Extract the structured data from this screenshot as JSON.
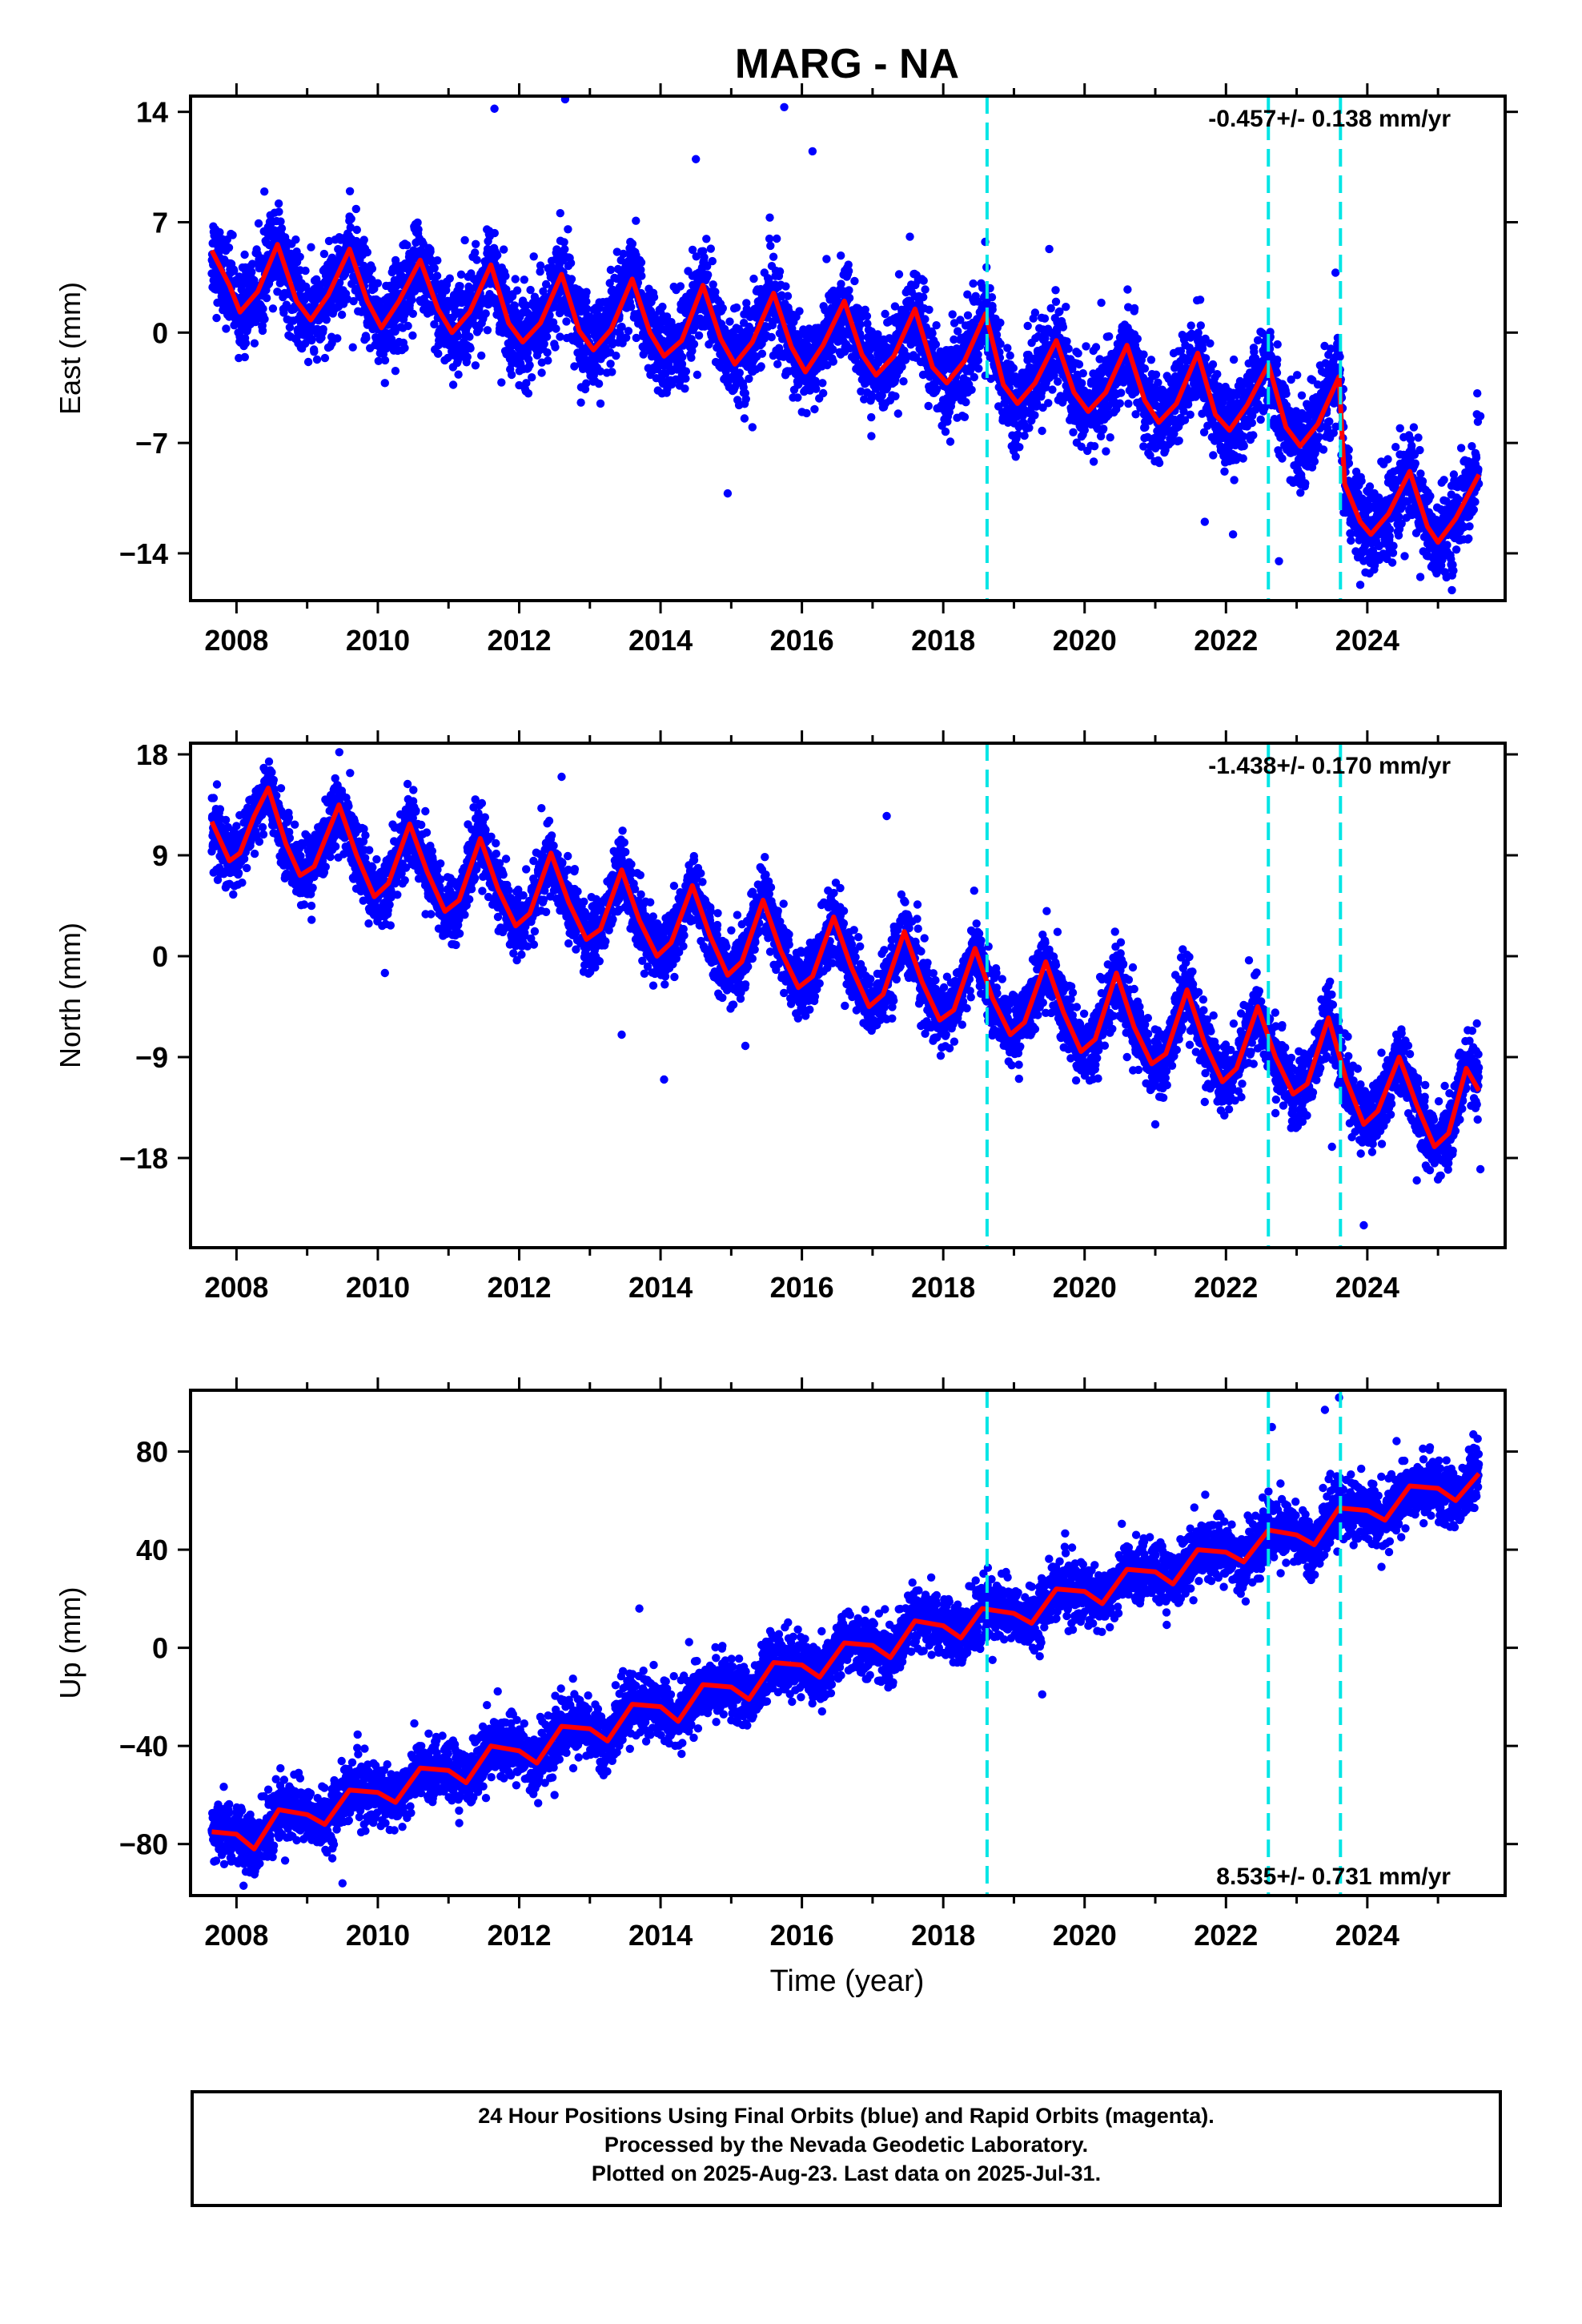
{
  "chart_data": {
    "type": "scatter",
    "title": "MARG - NA",
    "xlabel": "Time (year)",
    "xlim": [
      2007.35,
      2025.95
    ],
    "x_ticks": [
      2008,
      2010,
      2012,
      2014,
      2016,
      2018,
      2020,
      2022,
      2024
    ],
    "x_tick_labels": [
      "2008",
      "2010",
      "2012",
      "2014",
      "2016",
      "2018",
      "2020",
      "2022",
      "2024"
    ],
    "data_start": 2007.65,
    "data_end": 2025.58,
    "event_lines": [
      2018.62,
      2022.6,
      2023.62
    ],
    "colors": {
      "final_orbits": "#0000ff",
      "model": "#ff0000",
      "event_line": "#00e5e5",
      "axes": "#000000"
    },
    "panels": [
      {
        "ylabel": "East (mm)",
        "ylim": [
          -17,
          15
        ],
        "y_ticks": [
          14,
          7,
          0,
          -7,
          -14
        ],
        "y_tick_labels": [
          "14",
          "7",
          "0",
          "−7",
          "−14"
        ],
        "rate": "-0.457+/- 0.138 mm/yr",
        "rate_position": "top-right",
        "model_points": [
          [
            2007.65,
            5.2
          ],
          [
            2007.9,
            3.0
          ],
          [
            2008.05,
            1.3
          ],
          [
            2008.3,
            2.6
          ],
          [
            2008.58,
            5.6
          ],
          [
            2008.85,
            2.0
          ],
          [
            2009.05,
            0.8
          ],
          [
            2009.3,
            2.4
          ],
          [
            2009.6,
            5.3
          ],
          [
            2009.85,
            2.0
          ],
          [
            2010.05,
            0.3
          ],
          [
            2010.3,
            2.0
          ],
          [
            2010.6,
            4.6
          ],
          [
            2010.85,
            1.5
          ],
          [
            2011.05,
            0.0
          ],
          [
            2011.3,
            1.3
          ],
          [
            2011.6,
            4.3
          ],
          [
            2011.85,
            0.6
          ],
          [
            2012.05,
            -0.6
          ],
          [
            2012.3,
            0.6
          ],
          [
            2012.6,
            3.7
          ],
          [
            2012.85,
            0.1
          ],
          [
            2013.05,
            -1.1
          ],
          [
            2013.3,
            0.2
          ],
          [
            2013.6,
            3.4
          ],
          [
            2013.85,
            0.0
          ],
          [
            2014.05,
            -1.5
          ],
          [
            2014.3,
            -0.5
          ],
          [
            2014.6,
            3.0
          ],
          [
            2014.85,
            -0.4
          ],
          [
            2015.05,
            -2.0
          ],
          [
            2015.3,
            -0.6
          ],
          [
            2015.6,
            2.5
          ],
          [
            2015.85,
            -0.9
          ],
          [
            2016.05,
            -2.5
          ],
          [
            2016.3,
            -0.8
          ],
          [
            2016.6,
            2.0
          ],
          [
            2016.85,
            -1.4
          ],
          [
            2017.05,
            -2.7
          ],
          [
            2017.3,
            -1.5
          ],
          [
            2017.6,
            1.5
          ],
          [
            2017.85,
            -2.2
          ],
          [
            2018.05,
            -3.2
          ],
          [
            2018.3,
            -1.8
          ],
          [
            2018.6,
            1.2
          ],
          [
            2018.85,
            -3.3
          ],
          [
            2019.05,
            -4.5
          ],
          [
            2019.3,
            -3.2
          ],
          [
            2019.6,
            -0.5
          ],
          [
            2019.85,
            -3.8
          ],
          [
            2020.05,
            -5.0
          ],
          [
            2020.3,
            -3.8
          ],
          [
            2020.6,
            -0.8
          ],
          [
            2020.85,
            -4.3
          ],
          [
            2021.05,
            -5.7
          ],
          [
            2021.3,
            -4.5
          ],
          [
            2021.6,
            -1.3
          ],
          [
            2021.85,
            -5.2
          ],
          [
            2022.05,
            -6.2
          ],
          [
            2022.3,
            -4.6
          ],
          [
            2022.6,
            -2.0
          ],
          [
            2022.85,
            -6.0
          ],
          [
            2023.05,
            -7.2
          ],
          [
            2023.3,
            -5.8
          ],
          [
            2023.6,
            -2.8
          ],
          [
            2023.68,
            -9.6
          ],
          [
            2023.9,
            -12.0
          ],
          [
            2024.05,
            -12.8
          ],
          [
            2024.3,
            -11.5
          ],
          [
            2024.6,
            -8.8
          ],
          [
            2024.85,
            -12.3
          ],
          [
            2025.0,
            -13.3
          ],
          [
            2025.25,
            -11.8
          ],
          [
            2025.58,
            -9.0
          ]
        ]
      },
      {
        "ylabel": "North (mm)",
        "ylim": [
          -26,
          19
        ],
        "y_ticks": [
          18,
          9,
          0,
          -9,
          -18
        ],
        "y_tick_labels": [
          "18",
          "9",
          "0",
          "−9",
          "−18"
        ],
        "rate": "-1.438+/- 0.170 mm/yr",
        "rate_position": "top-right",
        "model_points": [
          [
            2007.65,
            12.0
          ],
          [
            2007.9,
            8.5
          ],
          [
            2008.05,
            9.2
          ],
          [
            2008.25,
            12.5
          ],
          [
            2008.45,
            15.0
          ],
          [
            2008.7,
            10.0
          ],
          [
            2008.9,
            7.2
          ],
          [
            2009.1,
            8.0
          ],
          [
            2009.45,
            13.5
          ],
          [
            2009.7,
            9.0
          ],
          [
            2009.95,
            5.3
          ],
          [
            2010.15,
            6.5
          ],
          [
            2010.45,
            11.8
          ],
          [
            2010.7,
            7.5
          ],
          [
            2010.95,
            4.0
          ],
          [
            2011.15,
            5.0
          ],
          [
            2011.45,
            10.5
          ],
          [
            2011.7,
            6.0
          ],
          [
            2011.95,
            2.7
          ],
          [
            2012.15,
            3.8
          ],
          [
            2012.45,
            9.2
          ],
          [
            2012.7,
            4.8
          ],
          [
            2012.95,
            1.5
          ],
          [
            2013.15,
            2.4
          ],
          [
            2013.45,
            7.7
          ],
          [
            2013.7,
            3.2
          ],
          [
            2013.95,
            0.0
          ],
          [
            2014.15,
            1.2
          ],
          [
            2014.45,
            6.3
          ],
          [
            2014.7,
            1.8
          ],
          [
            2014.95,
            -1.7
          ],
          [
            2015.15,
            -0.5
          ],
          [
            2015.45,
            5.0
          ],
          [
            2015.7,
            0.5
          ],
          [
            2015.95,
            -2.8
          ],
          [
            2016.15,
            -1.8
          ],
          [
            2016.45,
            3.5
          ],
          [
            2016.7,
            -1.0
          ],
          [
            2016.95,
            -4.5
          ],
          [
            2017.15,
            -3.4
          ],
          [
            2017.45,
            2.2
          ],
          [
            2017.7,
            -2.3
          ],
          [
            2017.95,
            -5.7
          ],
          [
            2018.15,
            -4.8
          ],
          [
            2018.45,
            0.7
          ],
          [
            2018.7,
            -3.8
          ],
          [
            2018.95,
            -7.0
          ],
          [
            2019.15,
            -5.9
          ],
          [
            2019.45,
            -0.5
          ],
          [
            2019.7,
            -5.0
          ],
          [
            2019.95,
            -8.5
          ],
          [
            2020.15,
            -7.4
          ],
          [
            2020.45,
            -1.5
          ],
          [
            2020.7,
            -6.3
          ],
          [
            2020.95,
            -9.6
          ],
          [
            2021.15,
            -8.7
          ],
          [
            2021.45,
            -3.0
          ],
          [
            2021.7,
            -7.8
          ],
          [
            2021.95,
            -11.2
          ],
          [
            2022.15,
            -10.0
          ],
          [
            2022.45,
            -4.5
          ],
          [
            2022.7,
            -9.0
          ],
          [
            2022.95,
            -12.3
          ],
          [
            2023.15,
            -11.4
          ],
          [
            2023.45,
            -5.5
          ],
          [
            2023.7,
            -11.0
          ],
          [
            2023.95,
            -15.0
          ],
          [
            2024.15,
            -13.8
          ],
          [
            2024.45,
            -9.0
          ],
          [
            2024.7,
            -13.3
          ],
          [
            2024.95,
            -17.0
          ],
          [
            2025.15,
            -15.8
          ],
          [
            2025.4,
            -10.0
          ],
          [
            2025.58,
            -12.0
          ]
        ]
      },
      {
        "ylabel": "Up (mm)",
        "ylim": [
          -101,
          105
        ],
        "y_ticks": [
          80,
          40,
          0,
          -40,
          -80
        ],
        "y_tick_labels": [
          "80",
          "40",
          "0",
          "−40",
          "−80"
        ],
        "rate": "8.535+/- 0.731 mm/yr",
        "rate_position": "bottom-right",
        "model_points": [
          [
            2007.65,
            -75
          ],
          [
            2008.0,
            -76
          ],
          [
            2008.25,
            -82
          ],
          [
            2008.6,
            -66
          ],
          [
            2009.0,
            -68
          ],
          [
            2009.25,
            -72
          ],
          [
            2009.6,
            -58
          ],
          [
            2010.0,
            -59
          ],
          [
            2010.25,
            -63
          ],
          [
            2010.6,
            -49
          ],
          [
            2011.0,
            -50
          ],
          [
            2011.25,
            -55
          ],
          [
            2011.6,
            -40
          ],
          [
            2012.0,
            -42
          ],
          [
            2012.25,
            -47
          ],
          [
            2012.6,
            -32
          ],
          [
            2013.0,
            -33
          ],
          [
            2013.25,
            -38
          ],
          [
            2013.6,
            -23
          ],
          [
            2014.0,
            -24
          ],
          [
            2014.25,
            -30
          ],
          [
            2014.6,
            -15
          ],
          [
            2015.0,
            -16
          ],
          [
            2015.25,
            -21
          ],
          [
            2015.6,
            -6
          ],
          [
            2016.0,
            -7
          ],
          [
            2016.25,
            -12
          ],
          [
            2016.6,
            2
          ],
          [
            2017.0,
            1
          ],
          [
            2017.25,
            -4
          ],
          [
            2017.6,
            11
          ],
          [
            2018.0,
            9
          ],
          [
            2018.25,
            4
          ],
          [
            2018.55,
            16
          ],
          [
            2019.0,
            14
          ],
          [
            2019.25,
            10
          ],
          [
            2019.6,
            24
          ],
          [
            2020.0,
            23
          ],
          [
            2020.25,
            18
          ],
          [
            2020.6,
            32
          ],
          [
            2021.0,
            31
          ],
          [
            2021.25,
            26
          ],
          [
            2021.6,
            40
          ],
          [
            2022.0,
            39
          ],
          [
            2022.25,
            35
          ],
          [
            2022.6,
            48
          ],
          [
            2023.0,
            46
          ],
          [
            2023.25,
            42
          ],
          [
            2023.6,
            57
          ],
          [
            2024.0,
            56
          ],
          [
            2024.25,
            52
          ],
          [
            2024.6,
            66
          ],
          [
            2025.0,
            65
          ],
          [
            2025.25,
            60
          ],
          [
            2025.58,
            71
          ]
        ]
      }
    ],
    "noise_mm": [
      1.4,
      1.5,
      6.0
    ],
    "outliers": [
      [
        [
          2011.65,
          14.2
        ],
        [
          2012.65,
          14.8
        ],
        [
          2015.75,
          14.3
        ],
        [
          2014.5,
          11.0
        ],
        [
          2016.15,
          11.5
        ],
        [
          2014.95,
          -10.2
        ],
        [
          2013.15,
          -4.5
        ],
        [
          2012.1,
          -3.2
        ],
        [
          2010.1,
          -3.2
        ],
        [
          2015.3,
          -6.0
        ],
        [
          2019.5,
          5.3
        ],
        [
          2023.55,
          3.8
        ],
        [
          2022.1,
          -12.8
        ],
        [
          2022.75,
          -14.5
        ],
        [
          2024.75,
          -15.5
        ],
        [
          2025.2,
          -15.0
        ],
        [
          2025.6,
          -5.3
        ],
        [
          2021.7,
          -12.0
        ],
        [
          2023.9,
          -16.0
        ]
      ],
      [
        [
          2012.6,
          16.0
        ],
        [
          2013.45,
          -7.0
        ],
        [
          2014.05,
          -11.0
        ],
        [
          2015.2,
          -8.0
        ],
        [
          2017.2,
          12.5
        ],
        [
          2019.3,
          -6.5
        ],
        [
          2020.6,
          -9.0
        ],
        [
          2021.7,
          -13.0
        ],
        [
          2023.5,
          -17.0
        ],
        [
          2023.95,
          -24.0
        ],
        [
          2024.7,
          -20.0
        ],
        [
          2025.6,
          -19.0
        ],
        [
          2025.55,
          -6.0
        ],
        [
          2022.7,
          -14.0
        ],
        [
          2021.0,
          -15.0
        ],
        [
          2010.1,
          -1.5
        ]
      ],
      [
        [
          2013.7,
          16
        ],
        [
          2022.65,
          90
        ],
        [
          2023.4,
          97
        ],
        [
          2023.6,
          102
        ],
        [
          2019.4,
          -19
        ],
        [
          2012.5,
          -60
        ],
        [
          2009.5,
          -96
        ],
        [
          2008.1,
          -97
        ],
        [
          2025.5,
          87
        ],
        [
          2024.2,
          33
        ]
      ]
    ],
    "note_lines": [
      "24 Hour Positions Using Final Orbits (blue) and Rapid Orbits (magenta).",
      "Processed by the Nevada Geodetic Laboratory.",
      "Plotted on 2025-Aug-23. Last data on 2025-Jul-31."
    ]
  }
}
